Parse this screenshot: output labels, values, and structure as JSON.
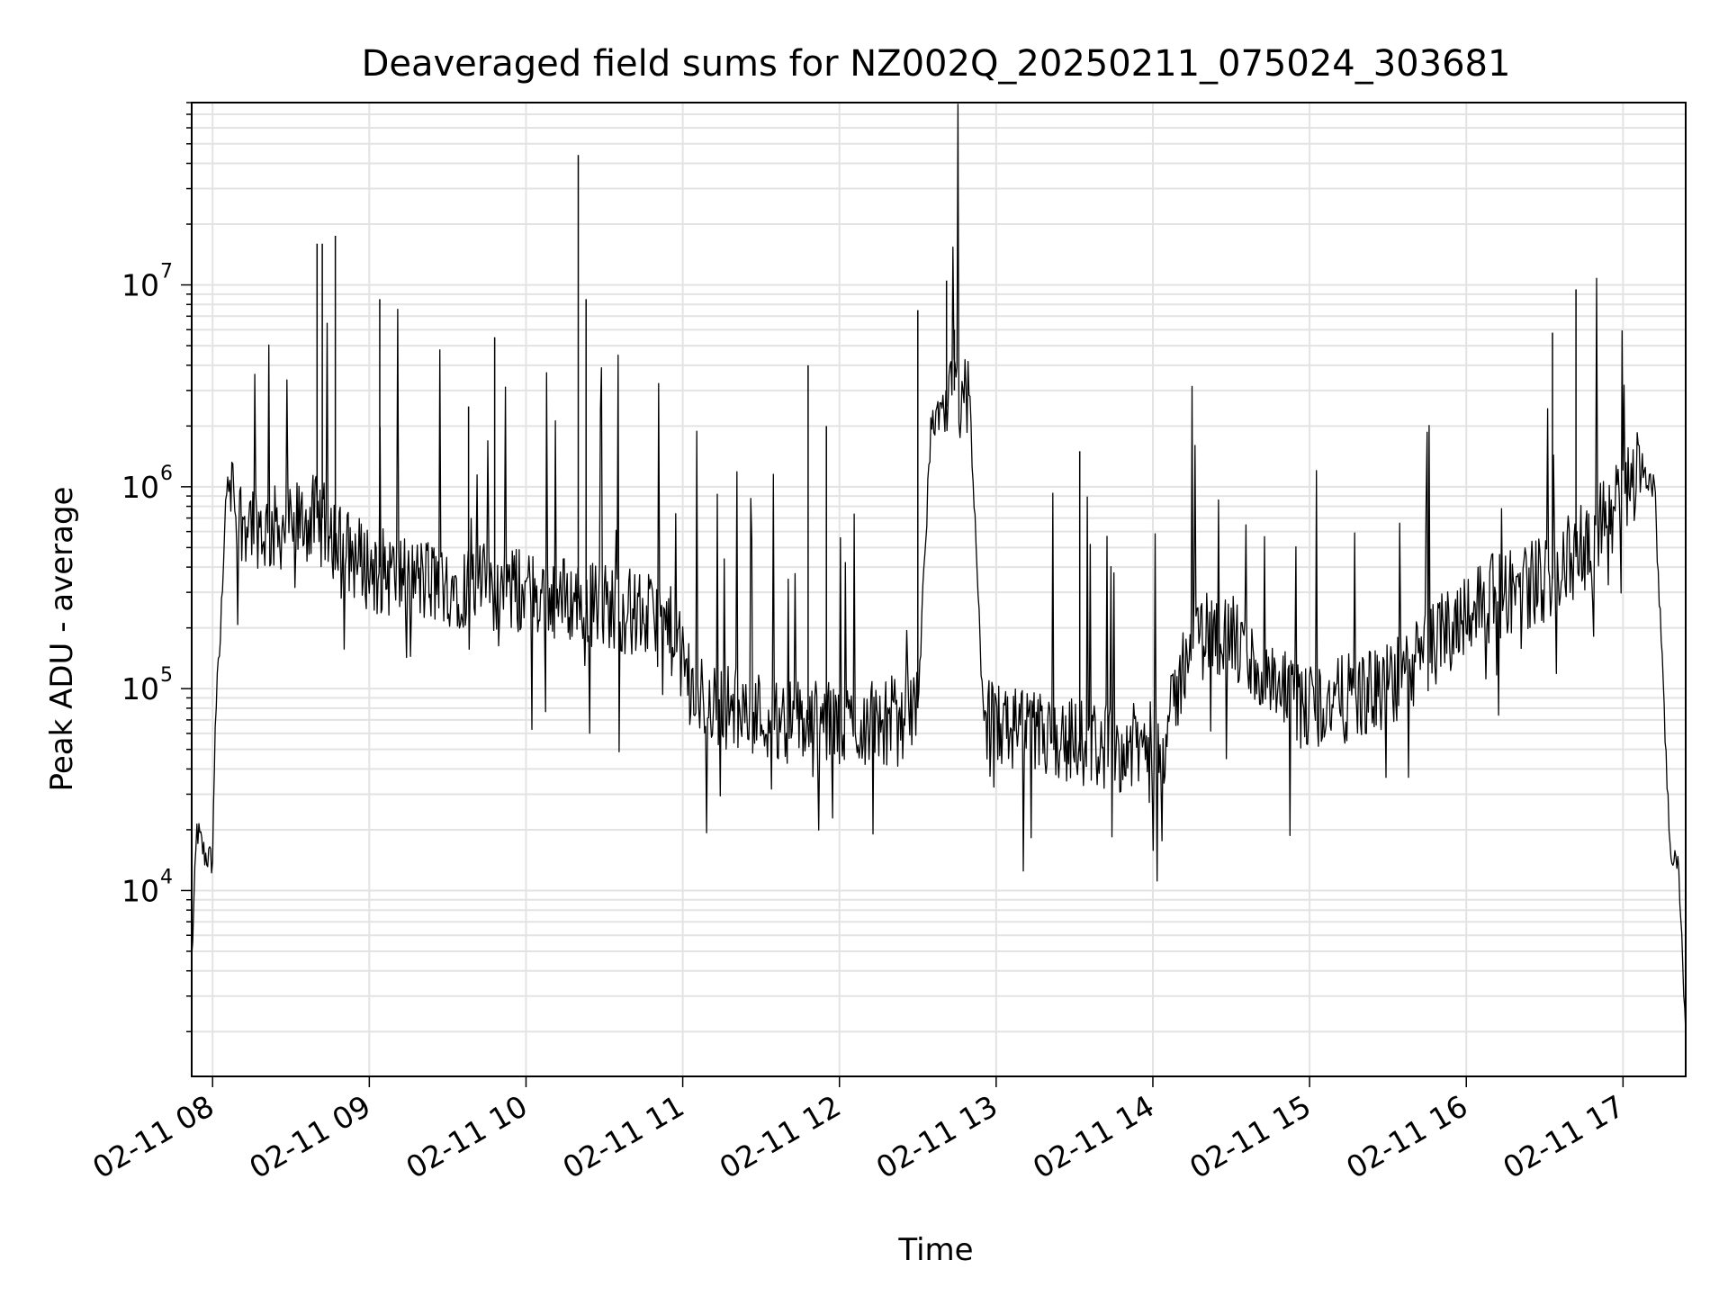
{
  "chart_data": {
    "type": "line",
    "title": "Deaveraged field sums for NZ002Q_20250211_075024_303681",
    "xlabel": "Time",
    "ylabel": "Peak ADU - average",
    "yscale": "log",
    "grid": true,
    "xlim": [
      "2025-02-11 07:52",
      "2025-02-11 17:24"
    ],
    "ylim": [
      1200,
      80000000
    ],
    "x_ticks": [
      "02-11 08",
      "02-11 09",
      "02-11 10",
      "02-11 11",
      "02-11 12",
      "02-11 13",
      "02-11 14",
      "02-11 15",
      "02-11 16",
      "02-11 17"
    ],
    "y_ticks": [
      {
        "base": "10",
        "exp": "4",
        "value": 10000
      },
      {
        "base": "10",
        "exp": "5",
        "value": 100000
      },
      {
        "base": "10",
        "exp": "6",
        "value": 1000000
      },
      {
        "base": "10",
        "exp": "7",
        "value": 10000000
      }
    ],
    "series": [
      {
        "color": "#000000",
        "x": [
          "2025-02-11 07:52",
          "2025-02-11 07:54",
          "2025-02-11 07:57",
          "2025-02-11 08:00",
          "2025-02-11 08:01",
          "2025-02-11 08:03",
          "2025-02-11 08:05",
          "2025-02-11 08:07",
          "2025-02-11 08:10",
          "2025-02-11 08:15",
          "2025-02-11 08:20",
          "2025-02-11 08:30",
          "2025-02-11 08:40",
          "2025-02-11 08:50",
          "2025-02-11 09:00",
          "2025-02-11 09:15",
          "2025-02-11 09:30",
          "2025-02-11 09:45",
          "2025-02-11 10:00",
          "2025-02-11 10:15",
          "2025-02-11 10:30",
          "2025-02-11 10:45",
          "2025-02-11 10:55",
          "2025-02-11 11:05",
          "2025-02-11 11:20",
          "2025-02-11 11:40",
          "2025-02-11 12:00",
          "2025-02-11 12:20",
          "2025-02-11 12:30",
          "2025-02-11 12:35",
          "2025-02-11 12:40",
          "2025-02-11 12:45",
          "2025-02-11 12:50",
          "2025-02-11 12:55",
          "2025-02-11 13:10",
          "2025-02-11 13:30",
          "2025-02-11 13:50",
          "2025-02-11 14:05",
          "2025-02-11 14:15",
          "2025-02-11 14:30",
          "2025-02-11 14:45",
          "2025-02-11 15:00",
          "2025-02-11 15:15",
          "2025-02-11 15:30",
          "2025-02-11 15:45",
          "2025-02-11 16:00",
          "2025-02-11 16:15",
          "2025-02-11 16:30",
          "2025-02-11 16:45",
          "2025-02-11 17:00",
          "2025-02-11 17:07",
          "2025-02-11 17:12",
          "2025-02-11 17:15",
          "2025-02-11 17:18",
          "2025-02-11 17:21",
          "2025-02-11 17:24"
        ],
        "y": [
          4500,
          20000,
          15000,
          14000,
          70000,
          180000,
          900000,
          1000000,
          700000,
          700000,
          600000,
          650000,
          700000,
          500000,
          400000,
          350000,
          330000,
          320000,
          300000,
          280000,
          260000,
          230000,
          200000,
          90000,
          80000,
          70000,
          65000,
          70000,
          80000,
          2000000,
          2500000,
          3000000,
          2500000,
          70000,
          60000,
          55000,
          50000,
          55000,
          200000,
          180000,
          100000,
          80000,
          90000,
          100000,
          150000,
          250000,
          300000,
          350000,
          500000,
          900000,
          1300000,
          1000000,
          150000,
          15000,
          15000,
          2000
        ]
      }
    ],
    "spikes": {
      "color": "#000000",
      "times": [
        "2025-02-11 08:40",
        "2025-02-11 08:42",
        "2025-02-11 08:47",
        "2025-02-11 09:04",
        "2025-02-11 09:38",
        "2025-02-11 09:48",
        "2025-02-11 10:20",
        "2025-02-11 10:23",
        "2025-02-11 11:48",
        "2025-02-11 11:55",
        "2025-02-11 12:30",
        "2025-02-11 12:41",
        "2025-02-11 12:44",
        "2025-02-11 13:32",
        "2025-02-11 16:33",
        "2025-02-11 16:42"
      ],
      "values": [
        16000000,
        16000000,
        17500000,
        8500000,
        2500000,
        5500000,
        44000000,
        8500000,
        4000000,
        2000000,
        7500000,
        10500000,
        6000000,
        1500000,
        5800000,
        9500000
      ]
    }
  }
}
